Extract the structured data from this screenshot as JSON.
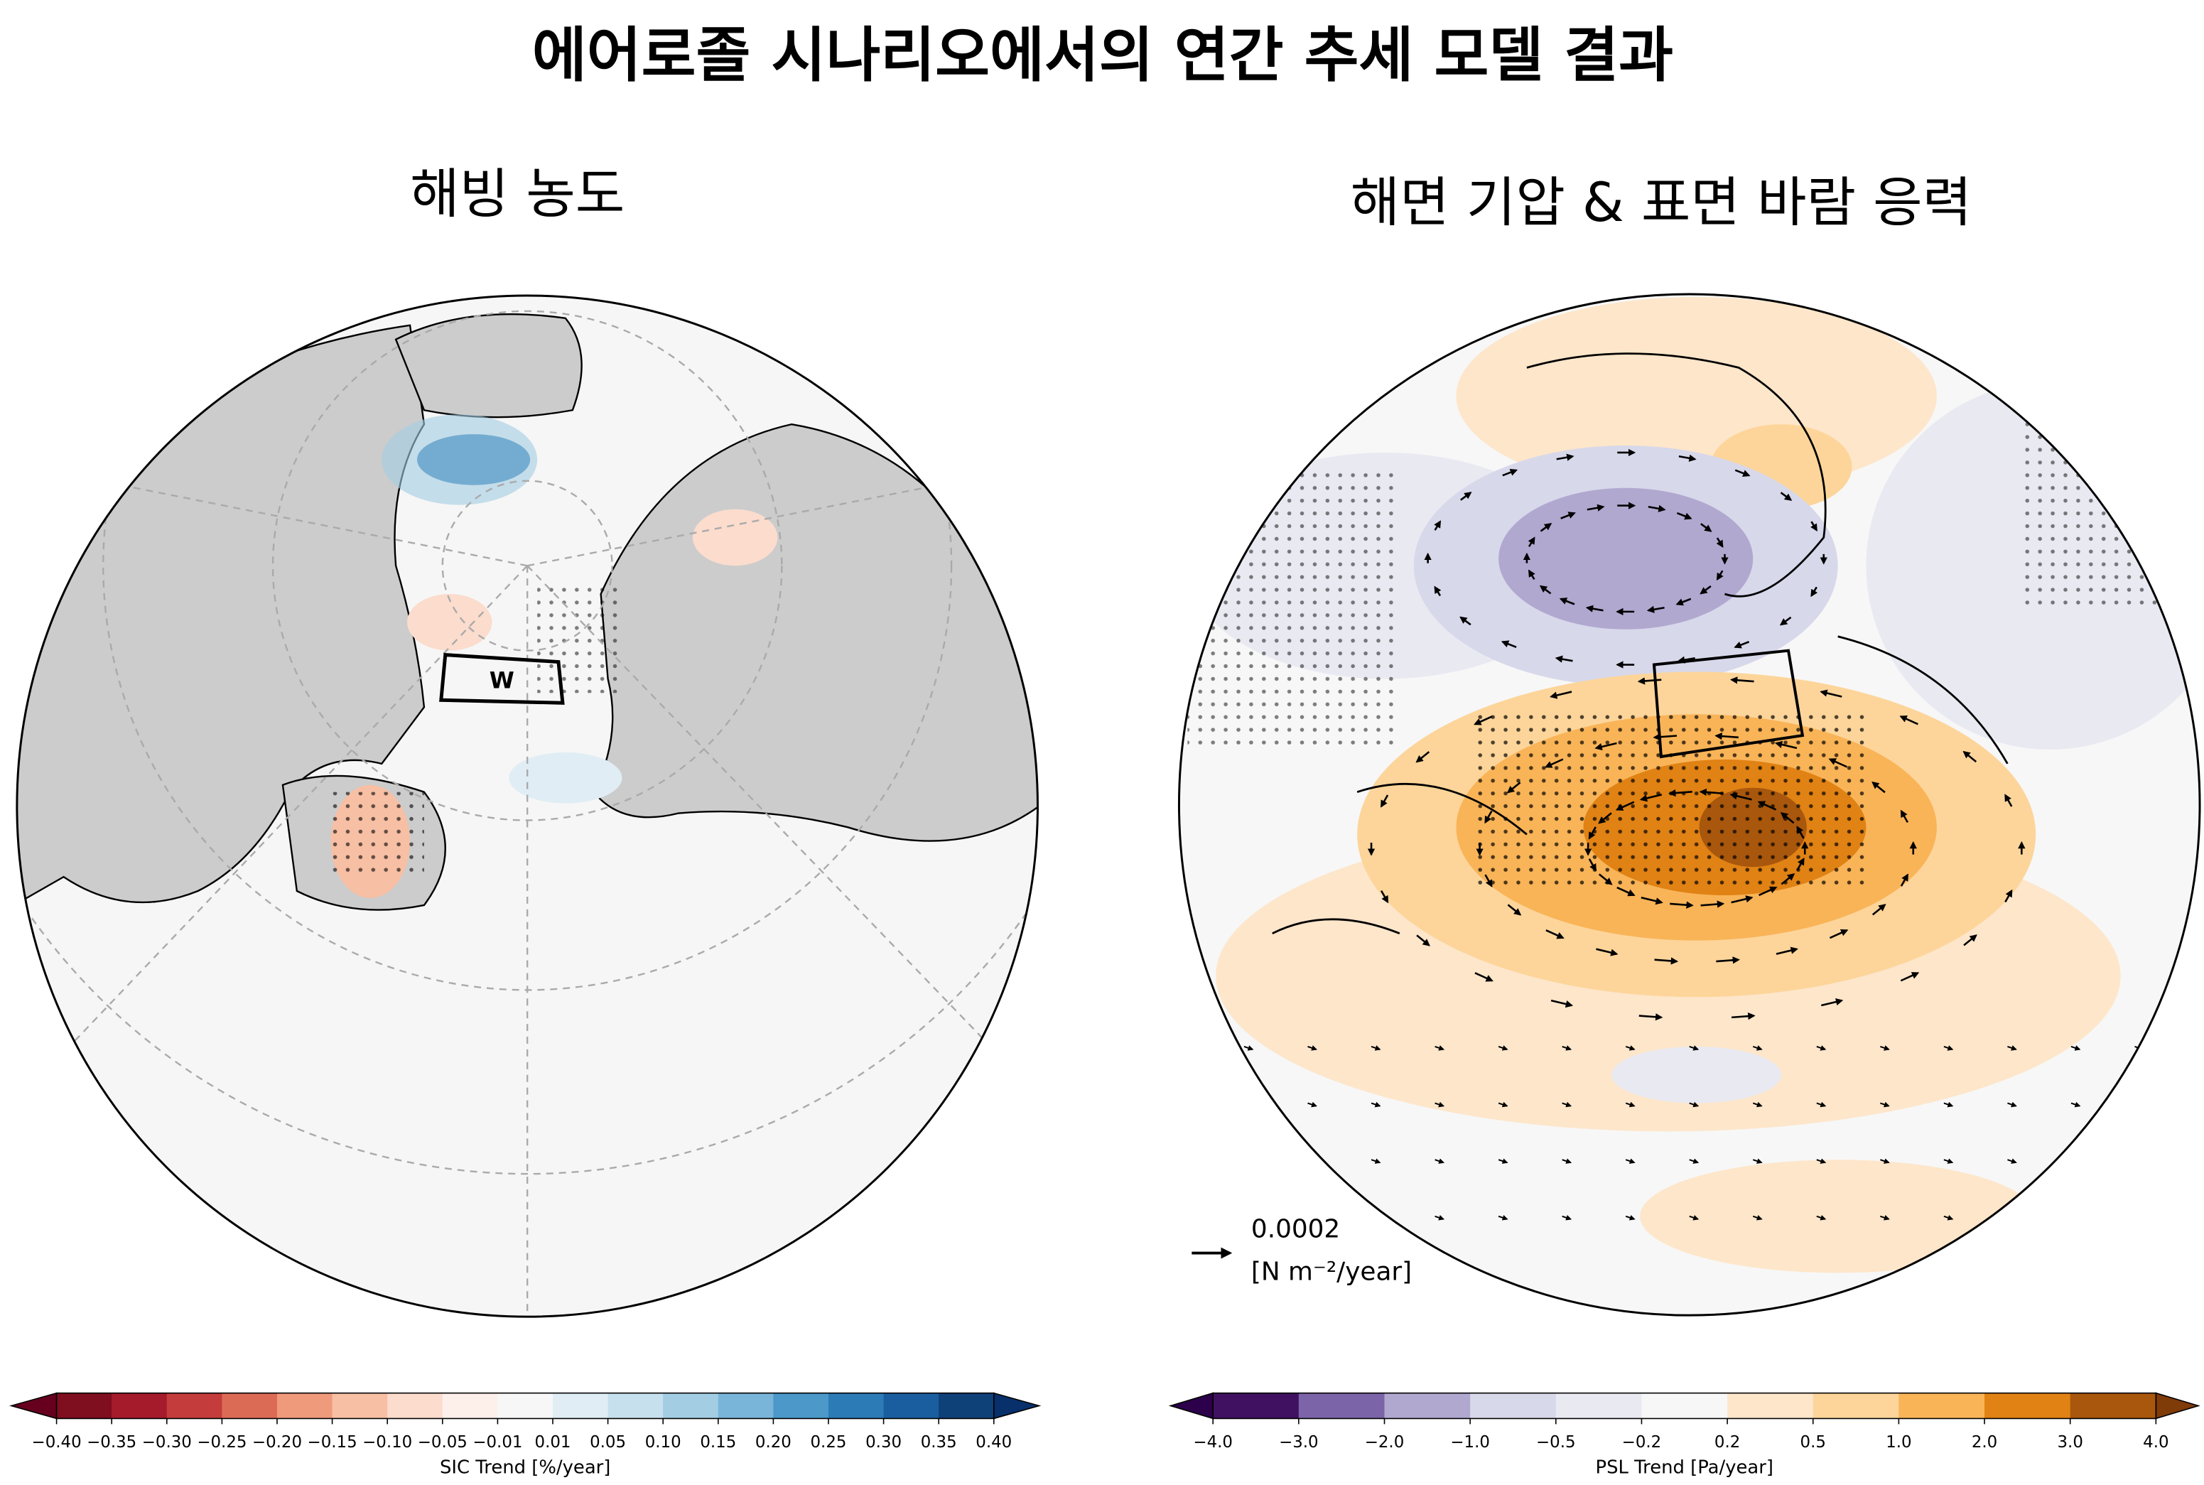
{
  "title": "에어로졸 시나리오에서의 연간 추세 모델 결과",
  "panels": [
    {
      "subtitle": "해빙 농도",
      "box_label": "W",
      "colorbar": {
        "label": "SIC Trend [%/year]",
        "ticks": [
          {
            "value": -0.4,
            "label": "−0.40"
          },
          {
            "value": -0.35,
            "label": "−0.35"
          },
          {
            "value": -0.3,
            "label": "−0.30"
          },
          {
            "value": -0.25,
            "label": "−0.25"
          },
          {
            "value": -0.2,
            "label": "−0.20"
          },
          {
            "value": -0.15,
            "label": "−0.15"
          },
          {
            "value": -0.1,
            "label": "−0.10"
          },
          {
            "value": -0.05,
            "label": "−0.05"
          },
          {
            "value": -0.01,
            "label": "−0.01"
          },
          {
            "value": 0.01,
            "label": "0.01"
          },
          {
            "value": 0.05,
            "label": "0.05"
          },
          {
            "value": 0.1,
            "label": "0.10"
          },
          {
            "value": 0.15,
            "label": "0.15"
          },
          {
            "value": 0.2,
            "label": "0.20"
          },
          {
            "value": 0.25,
            "label": "0.25"
          },
          {
            "value": 0.3,
            "label": "0.30"
          },
          {
            "value": 0.35,
            "label": "0.35"
          },
          {
            "value": 0.4,
            "label": "0.40"
          }
        ],
        "colors": [
          "#7f0e1f",
          "#a51b2c",
          "#c43c3c",
          "#dc6b55",
          "#ef9a7a",
          "#f7bfa4",
          "#fbdccd",
          "#fdf0ea",
          "#f7f7f7",
          "#e0edf5",
          "#c7e0ed",
          "#a3cde3",
          "#79b5d8",
          "#4b98c9",
          "#2d7bb6",
          "#1b5e9f",
          "#0f4179"
        ],
        "extend_colors": [
          "#67001f",
          "#08306b"
        ]
      }
    },
    {
      "subtitle": "해면 기압 & 표면 바람 응력",
      "reference_arrow": {
        "value_label": "0.0002",
        "unit_label": "[N m⁻²/year]"
      },
      "colorbar": {
        "label": "PSL Trend [Pa/year]",
        "ticks": [
          {
            "value": -4.0,
            "label": "−4.0"
          },
          {
            "value": -3.0,
            "label": "−3.0"
          },
          {
            "value": -2.0,
            "label": "−2.0"
          },
          {
            "value": -1.0,
            "label": "−1.0"
          },
          {
            "value": -0.5,
            "label": "−0.5"
          },
          {
            "value": -0.2,
            "label": "−0.2"
          },
          {
            "value": 0.2,
            "label": "0.2"
          },
          {
            "value": 0.5,
            "label": "0.5"
          },
          {
            "value": 1.0,
            "label": "1.0"
          },
          {
            "value": 2.0,
            "label": "2.0"
          },
          {
            "value": 3.0,
            "label": "3.0"
          },
          {
            "value": 4.0,
            "label": "4.0"
          }
        ],
        "colors": [
          "#3f1160",
          "#7b64a8",
          "#b1a8d0",
          "#d7d8ea",
          "#e9e9f2",
          "#f7f7f7",
          "#fde6ca",
          "#fdd59a",
          "#f9b458",
          "#e08214",
          "#a8570c"
        ],
        "extend_colors": [
          "#2d004b",
          "#7f3b08"
        ]
      }
    }
  ]
}
